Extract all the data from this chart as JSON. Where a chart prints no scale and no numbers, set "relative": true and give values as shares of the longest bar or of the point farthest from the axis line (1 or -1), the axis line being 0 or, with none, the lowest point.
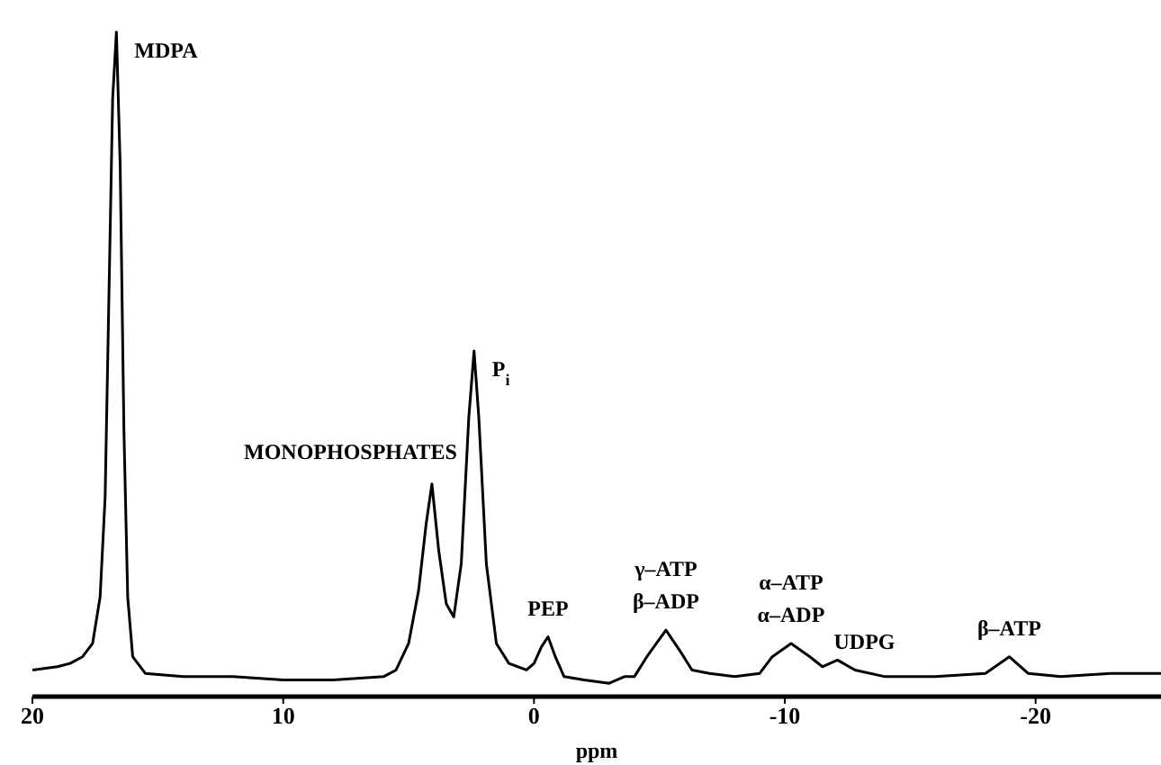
{
  "chart_data": {
    "type": "line",
    "relative": true,
    "xlabel": "ppm",
    "xlim": [
      20,
      -25
    ],
    "xticks": [
      20,
      10,
      0,
      -10,
      -20
    ],
    "grid": false,
    "legend": false,
    "marker": "none",
    "line_style": "solid",
    "series": [
      {
        "color": "#000000",
        "x": [
          20,
          19,
          18.5,
          18,
          17.6,
          17.3,
          17.1,
          16.95,
          16.8,
          16.65,
          16.5,
          16.35,
          16.2,
          16,
          15.5,
          14,
          12,
          10,
          8,
          6,
          5.5,
          5,
          4.6,
          4.3,
          4.07,
          3.8,
          3.5,
          3.2,
          2.9,
          2.6,
          2.39,
          2.2,
          1.9,
          1.5,
          1,
          0.3,
          0,
          -0.3,
          -0.56,
          -0.85,
          -1.2,
          -2,
          -3,
          -3.6,
          -4,
          -4.5,
          -5.26,
          -5.8,
          -6.3,
          -7,
          -8,
          -9,
          -9.5,
          -10.25,
          -11,
          -11.5,
          -12.1,
          -12.8,
          -14,
          -16,
          -18,
          -18.95,
          -19.7,
          -21,
          -23,
          -25
        ],
        "values": [
          0.04,
          0.045,
          0.05,
          0.06,
          0.08,
          0.15,
          0.3,
          0.6,
          0.9,
          1,
          0.8,
          0.4,
          0.15,
          0.06,
          0.035,
          0.03,
          0.03,
          0.025,
          0.025,
          0.03,
          0.04,
          0.08,
          0.16,
          0.26,
          0.32,
          0.22,
          0.14,
          0.12,
          0.2,
          0.42,
          0.52,
          0.42,
          0.2,
          0.08,
          0.05,
          0.04,
          0.05,
          0.075,
          0.09,
          0.06,
          0.03,
          0.025,
          0.02,
          0.03,
          0.03,
          0.06,
          0.1,
          0.07,
          0.04,
          0.035,
          0.03,
          0.035,
          0.06,
          0.08,
          0.06,
          0.045,
          0.055,
          0.04,
          0.03,
          0.03,
          0.035,
          0.06,
          0.035,
          0.03,
          0.035,
          0.035
        ]
      }
    ],
    "annotations": [
      {
        "text": "MDPA",
        "x": 16.65,
        "y": 1
      },
      {
        "text": "MONOPHOSPHATES",
        "x": 4.07,
        "y": 0.32
      },
      {
        "text": "P$_{i}$",
        "x": 2.39,
        "y": 0.52
      },
      {
        "text": "PEP",
        "x": -0.56,
        "y": 0.09
      },
      {
        "text": "γ–ATP",
        "x": -5.26,
        "y": 0.1
      },
      {
        "text": "β–ADP",
        "x": -5.26,
        "y": 0.1
      },
      {
        "text": "α–ATP",
        "x": -10.25,
        "y": 0.08
      },
      {
        "text": "α–ADP",
        "x": -10.25,
        "y": 0.08
      },
      {
        "text": "UDPG",
        "x": -12.1,
        "y": 0.055
      },
      {
        "text": "β–ATP",
        "x": -18.95,
        "y": 0.06
      }
    ]
  }
}
